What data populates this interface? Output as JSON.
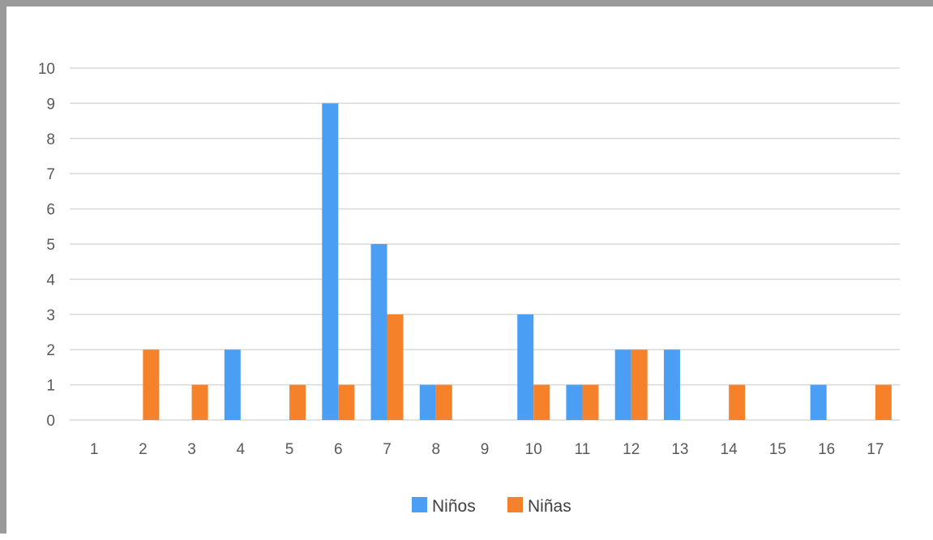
{
  "chart_data": {
    "type": "bar",
    "categories": [
      "1",
      "2",
      "3",
      "4",
      "5",
      "6",
      "7",
      "8",
      "9",
      "10",
      "11",
      "12",
      "13",
      "14",
      "15",
      "16",
      "17"
    ],
    "series": [
      {
        "name": "Niños",
        "color": "#4a9ff5",
        "values": [
          0,
          0,
          0,
          2,
          0,
          9,
          5,
          1,
          0,
          3,
          1,
          2,
          2,
          0,
          0,
          1,
          0
        ]
      },
      {
        "name": "Niñas",
        "color": "#f5812a",
        "values": [
          0,
          2,
          1,
          0,
          1,
          1,
          3,
          1,
          0,
          1,
          1,
          2,
          0,
          1,
          0,
          0,
          1
        ]
      }
    ],
    "ylim": [
      0,
      10
    ],
    "yticks": [
      "0",
      "1",
      "2",
      "3",
      "4",
      "5",
      "6",
      "7",
      "8",
      "9",
      "10"
    ],
    "grid": true,
    "gridColor": "#d9d9d9",
    "legend": "bottom-center"
  }
}
